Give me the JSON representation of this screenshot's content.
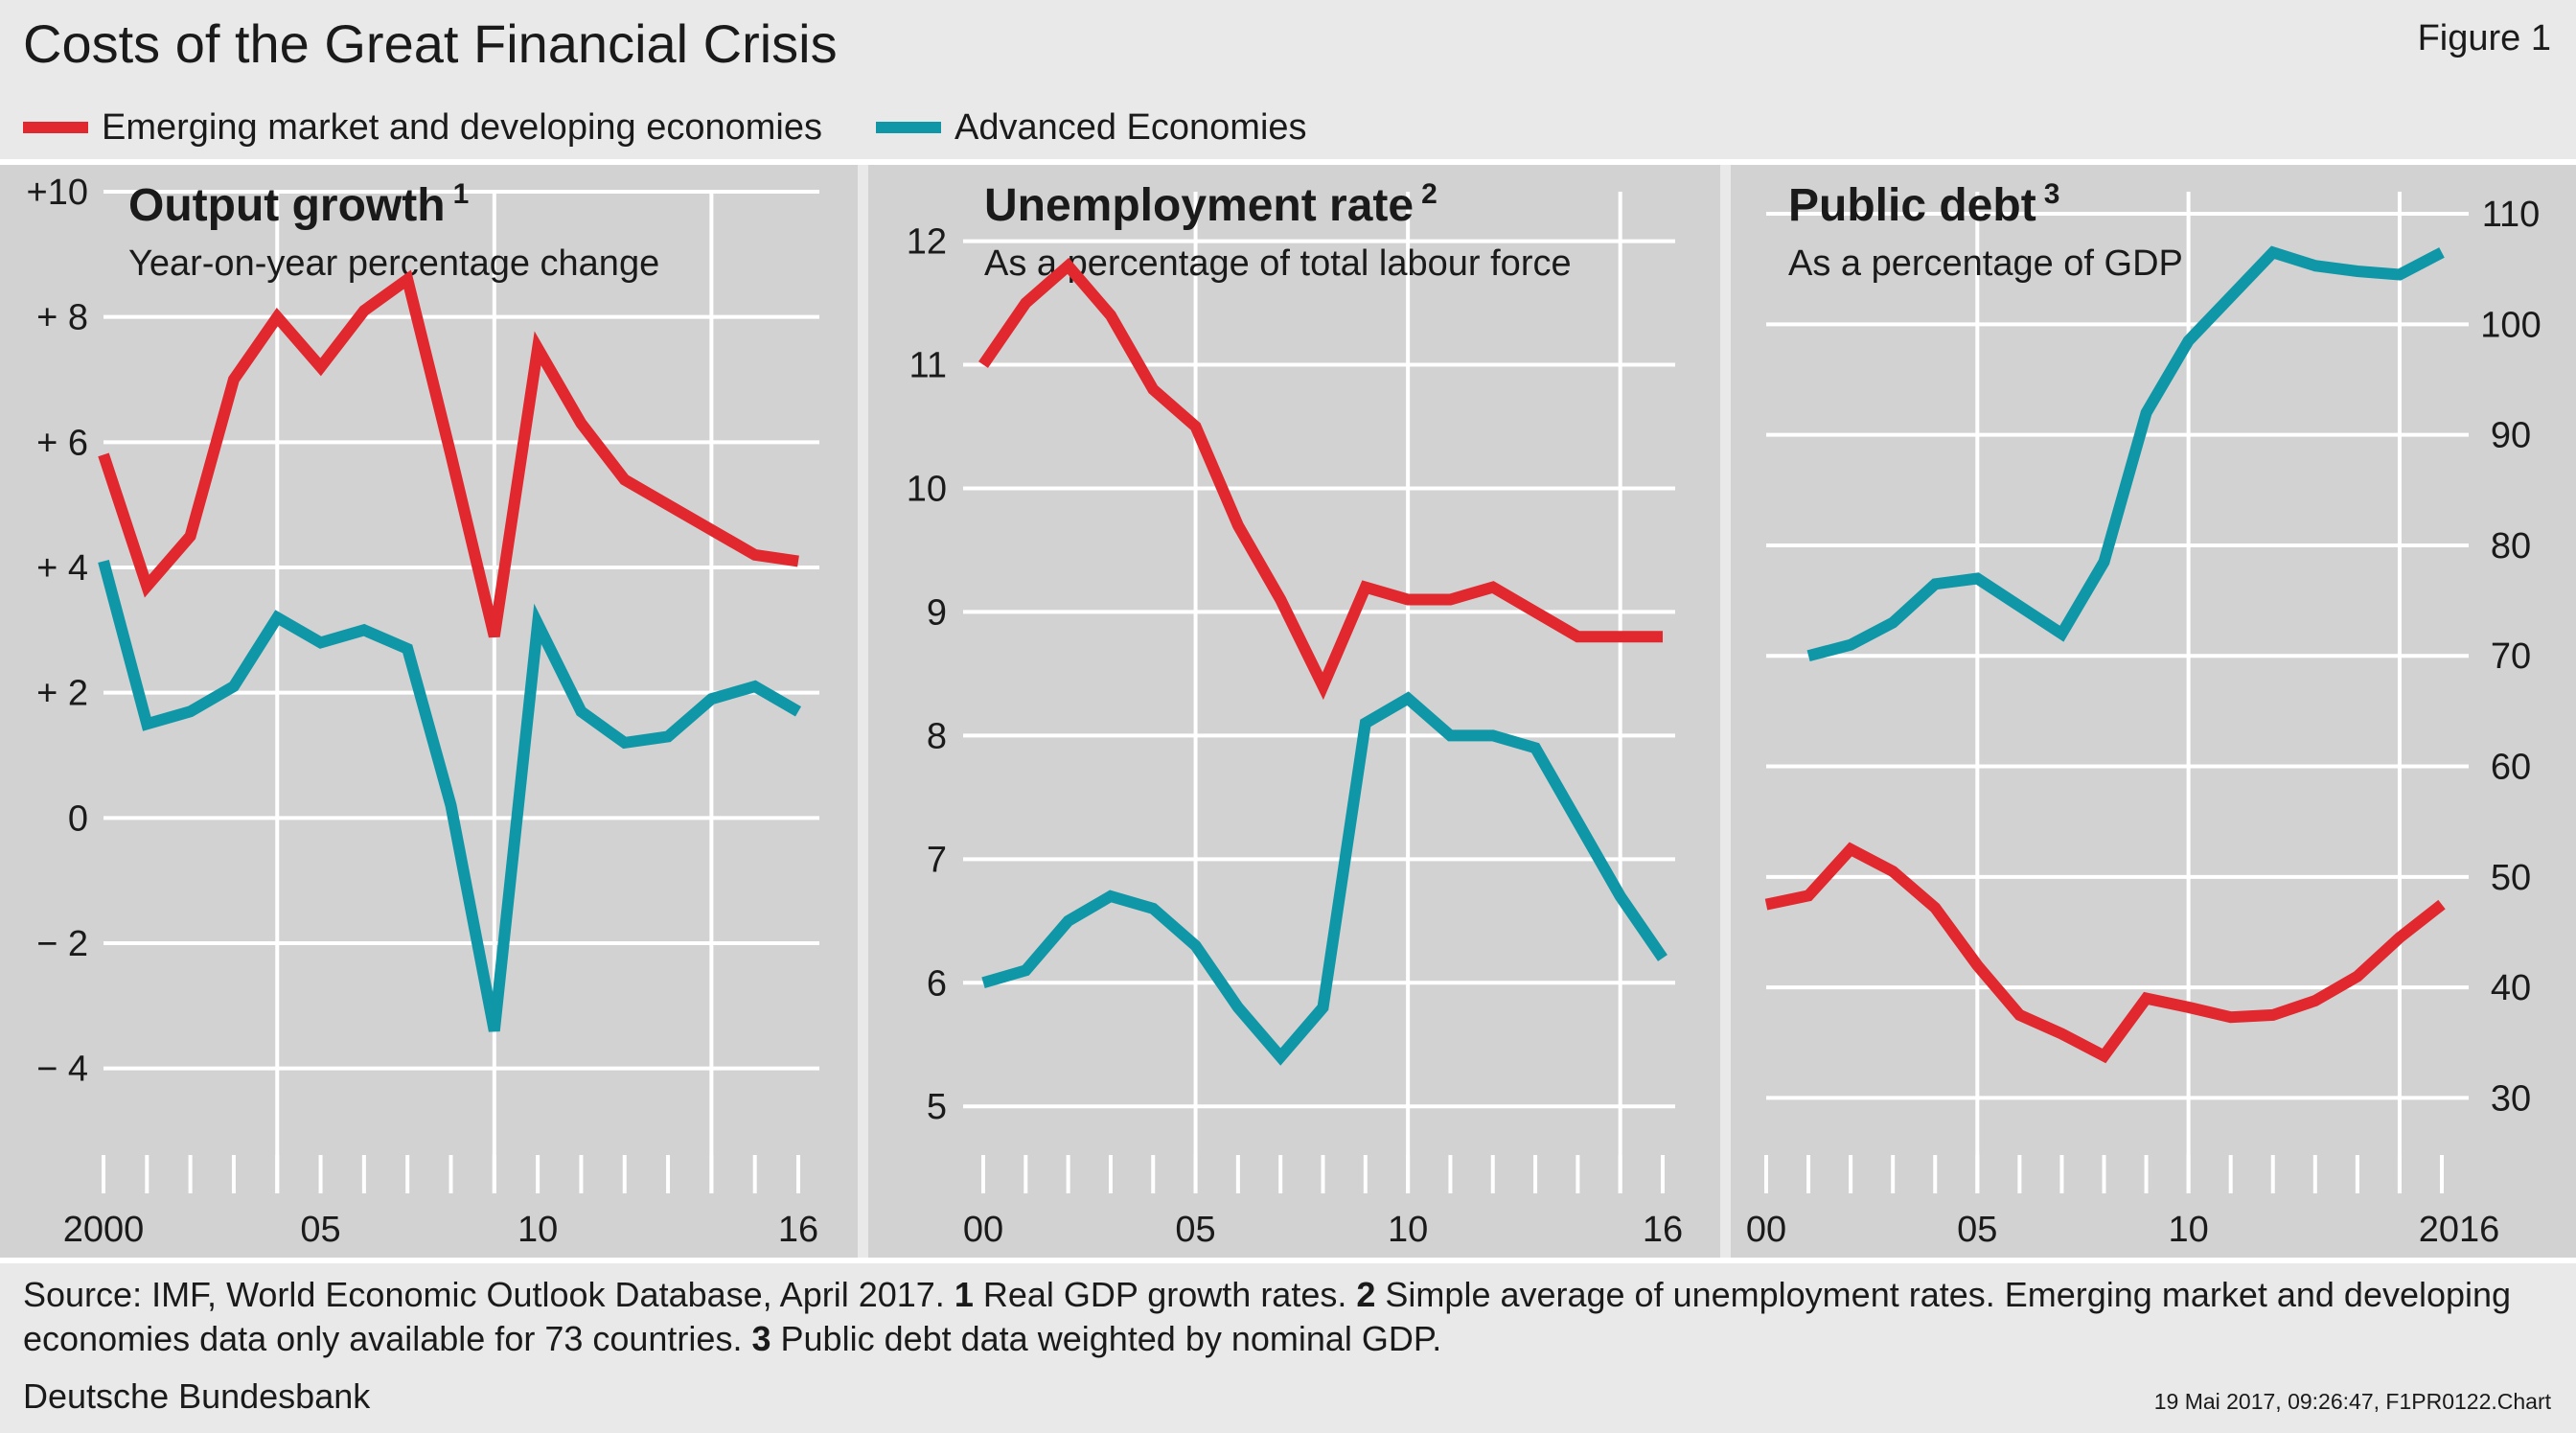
{
  "title": "Costs of the Great Financial Crisis",
  "figure_label": "Figure 1",
  "legend": [
    {
      "label": "Emerging market and developing economies",
      "color": "#e0282e"
    },
    {
      "label": "Advanced Economies",
      "color": "#0f97a8"
    }
  ],
  "colors": {
    "panel_bg": "#d2d2d2",
    "gridline": "#ffffff",
    "page_bg": "#e9e9e9",
    "text": "#1a1a1a"
  },
  "chart_data": [
    {
      "type": "line",
      "title": "Output growth",
      "title_sup": "1",
      "subtitle": "Year-on-year percentage change",
      "y_axis_side": "left",
      "ylim": [
        -5,
        10
      ],
      "yticks": [
        10,
        8,
        6,
        4,
        2,
        0,
        -2,
        -4
      ],
      "ytick_labels": [
        "+10",
        "+ 8",
        "+ 6",
        "+ 4",
        "+ 2",
        "0",
        "− 2",
        "− 4"
      ],
      "vgrid_years": [
        2004,
        2009,
        2014
      ],
      "xtick_labels": [
        {
          "year": 2000,
          "label": "2000"
        },
        {
          "year": 2005,
          "label": "05"
        },
        {
          "year": 2010,
          "label": "10"
        },
        {
          "year": 2016,
          "label": "16"
        }
      ],
      "x": [
        2000,
        2001,
        2002,
        2003,
        2004,
        2005,
        2006,
        2007,
        2008,
        2009,
        2010,
        2011,
        2012,
        2013,
        2014,
        2015,
        2016
      ],
      "series": [
        {
          "name": "Emerging market and developing economies",
          "values": [
            5.8,
            3.7,
            4.5,
            7.0,
            8.0,
            7.2,
            8.1,
            8.6,
            5.8,
            2.9,
            7.5,
            6.3,
            5.4,
            5.0,
            4.6,
            4.2,
            4.1
          ]
        },
        {
          "name": "Advanced Economies",
          "values": [
            4.1,
            1.5,
            1.7,
            2.1,
            3.2,
            2.8,
            3.0,
            2.7,
            0.2,
            -3.4,
            3.1,
            1.7,
            1.2,
            1.3,
            1.9,
            2.1,
            1.7
          ]
        }
      ]
    },
    {
      "type": "line",
      "title": "Unemployment rate",
      "title_sup": "2",
      "subtitle": "As a percentage of total labour force",
      "y_axis_side": "left",
      "ylim": [
        4.8,
        12.4
      ],
      "yticks": [
        12,
        11,
        10,
        9,
        8,
        7,
        6,
        5
      ],
      "ytick_labels": [
        "12",
        "11",
        "10",
        "9",
        "8",
        "7",
        "6",
        "5"
      ],
      "vgrid_years": [
        2005,
        2010,
        2015
      ],
      "xtick_labels": [
        {
          "year": 2000,
          "label": "00"
        },
        {
          "year": 2005,
          "label": "05"
        },
        {
          "year": 2010,
          "label": "10"
        },
        {
          "year": 2016,
          "label": "16"
        }
      ],
      "x": [
        2000,
        2001,
        2002,
        2003,
        2004,
        2005,
        2006,
        2007,
        2008,
        2009,
        2010,
        2011,
        2012,
        2013,
        2014,
        2015,
        2016
      ],
      "series": [
        {
          "name": "Emerging market and developing economies",
          "values": [
            11.0,
            11.5,
            11.8,
            11.4,
            10.8,
            10.5,
            9.7,
            9.1,
            8.4,
            9.2,
            9.1,
            9.1,
            9.2,
            9.0,
            8.8,
            8.8,
            8.8
          ]
        },
        {
          "name": "Advanced Economies",
          "values": [
            6.0,
            6.1,
            6.5,
            6.7,
            6.6,
            6.3,
            5.8,
            5.4,
            5.8,
            8.1,
            8.3,
            8.0,
            8.0,
            7.9,
            7.3,
            6.7,
            6.2
          ]
        }
      ]
    },
    {
      "type": "line",
      "title": "Public debt",
      "title_sup": "3",
      "subtitle": "As a percentage of GDP",
      "y_axis_side": "right",
      "ylim": [
        27,
        112
      ],
      "yticks": [
        110,
        100,
        90,
        80,
        70,
        60,
        50,
        40,
        30
      ],
      "ytick_labels": [
        "110",
        "100",
        "90",
        "80",
        "70",
        "60",
        "50",
        "40",
        "30"
      ],
      "vgrid_years": [
        2005,
        2010,
        2015
      ],
      "xtick_labels": [
        {
          "year": 2000,
          "label": "00"
        },
        {
          "year": 2005,
          "label": "05"
        },
        {
          "year": 2010,
          "label": "10"
        },
        {
          "year": 2016,
          "label": "2016"
        }
      ],
      "x": [
        2000,
        2001,
        2002,
        2003,
        2004,
        2005,
        2006,
        2007,
        2008,
        2009,
        2010,
        2011,
        2012,
        2013,
        2014,
        2015,
        2016
      ],
      "series": [
        {
          "name": "Emerging market and developing economies",
          "values": [
            47.5,
            48.3,
            52.5,
            50.5,
            47.2,
            42.0,
            37.5,
            35.8,
            33.8,
            39.0,
            38.2,
            37.3,
            37.5,
            38.8,
            41.0,
            44.5,
            47.5
          ]
        },
        {
          "name": "Advanced Economies",
          "values": [
            null,
            70.0,
            71.0,
            73.0,
            76.5,
            77.0,
            74.5,
            72.0,
            78.5,
            92.0,
            98.5,
            102.5,
            106.5,
            105.3,
            104.8,
            104.5,
            106.5
          ]
        }
      ]
    }
  ],
  "source_prefix": "Source: IMF, World Economic Outlook Database, April 2017.",
  "footnotes": [
    {
      "num": "1",
      "text": "Real GDP growth rates."
    },
    {
      "num": "2",
      "text": "Simple average of unemployment rates. Emerging market and developing economies data only available for 73 countries."
    },
    {
      "num": "3",
      "text": "Public debt data weighted by nominal GDP."
    }
  ],
  "publisher": "Deutsche Bundesbank",
  "timestamp": "19 Mai 2017, 09:26:47, F1PR0122.Chart"
}
